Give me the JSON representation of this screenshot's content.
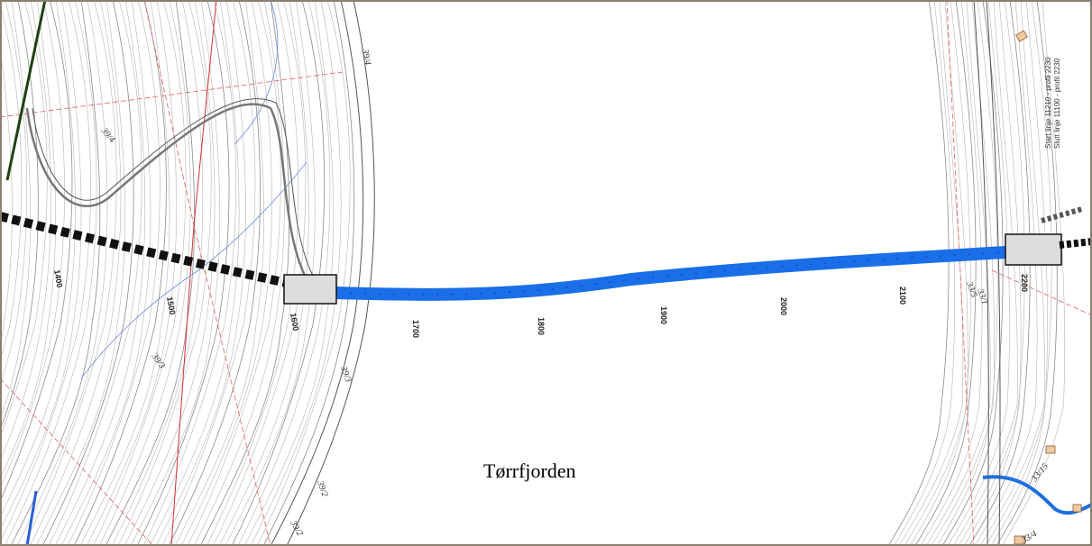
{
  "map": {
    "water_name": "Tørrfjorden",
    "stations": [
      "1400",
      "1500",
      "1600",
      "1700",
      "1800",
      "1900",
      "2000",
      "2100",
      "2200"
    ],
    "properties": [
      "39/4",
      "39/4",
      "39/3",
      "39/3",
      "39/2",
      "39/2",
      "33/5",
      "33/1",
      "33/15",
      "33/4"
    ],
    "notes": [
      "Start linje 11210 - profil 2230",
      "Slutt linje 11100 - profil 2230"
    ]
  }
}
